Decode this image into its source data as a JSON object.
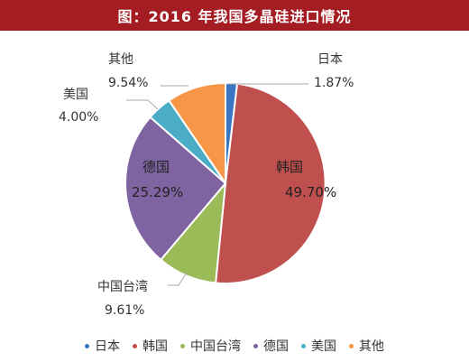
{
  "chart_data": {
    "type": "pie",
    "title": "图：2016 年我国多晶硅进口情况",
    "categories": [
      "日本",
      "韩国",
      "中国台湾",
      "德国",
      "美国",
      "其他"
    ],
    "values": [
      1.87,
      49.7,
      9.61,
      25.29,
      4.0,
      9.54
    ],
    "value_labels": [
      "1.87%",
      "49.70%",
      "9.61%",
      "25.29%",
      "4.00%",
      "9.54%"
    ],
    "colors": [
      "#3a76c2",
      "#c0504d",
      "#9bbb59",
      "#8064a2",
      "#4bacc6",
      "#f79646"
    ],
    "legend_position": "bottom",
    "start_angle_deg": 0,
    "direction": "clockwise"
  }
}
